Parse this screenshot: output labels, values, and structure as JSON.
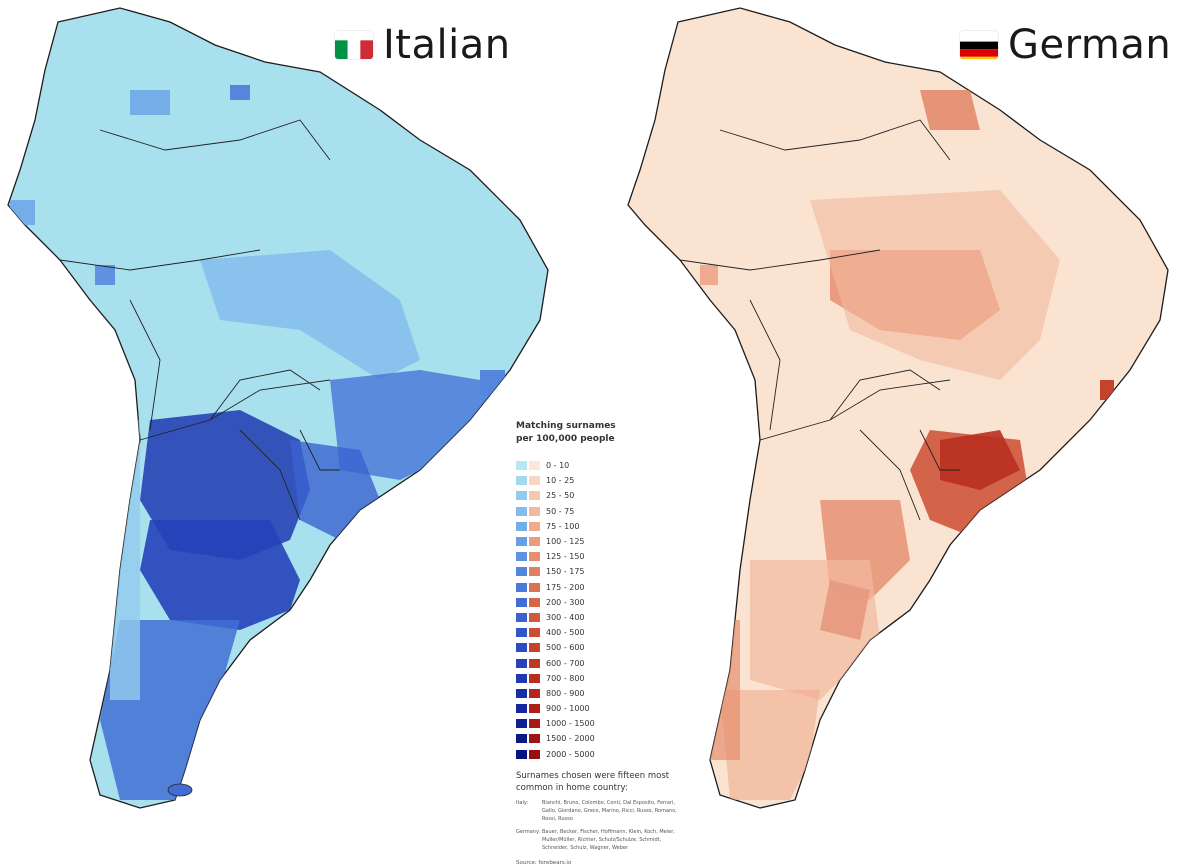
{
  "maps": {
    "italian": {
      "title": "Italian",
      "flag_icon": "italy-flag-icon",
      "flag_colors": [
        "#009246",
        "#ffffff",
        "#ce2b37"
      ],
      "base_color": "#a9e0ee",
      "scale": [
        "#b5e9f1",
        "#a3d9ef",
        "#92cbef",
        "#84bcec",
        "#73aee9",
        "#67a0e6",
        "#5f93e2",
        "#5486dd",
        "#4b7ad8",
        "#426ed4",
        "#3a63cf",
        "#3258c8",
        "#2b4dc1",
        "#2443b9",
        "#1e39b0",
        "#1830a6",
        "#13289c",
        "#0f2091",
        "#0b1987"
      ]
    },
    "german": {
      "title": "German",
      "flag_icon": "germany-flag-icon",
      "flag_colors": [
        "#000000",
        "#dd0000",
        "#ffce00"
      ],
      "base_color": "#fbe3d2",
      "scale": [
        "#fce7d8",
        "#f9d6c2",
        "#f6c8b0",
        "#f2b99e",
        "#eeab8d",
        "#ea9c7d",
        "#e68e6e",
        "#e18060",
        "#dc7253",
        "#d76547",
        "#d1593c",
        "#cb4d33",
        "#c5422b",
        "#bf3825",
        "#b82f20",
        "#b2271c",
        "#ab2018",
        "#a51a15",
        "#9e1512"
      ]
    }
  },
  "legend": {
    "title_line1": "Matching surnames",
    "title_line2": "per 100,000 people",
    "ranges": [
      "0 - 10",
      "10 - 25",
      "25 - 50",
      "50 - 75",
      "75 - 100",
      "100 - 125",
      "125 - 150",
      "150 - 175",
      "175 - 200",
      "200 - 300",
      "300 - 400",
      "400 - 500",
      "500 - 600",
      "600 - 700",
      "700 - 800",
      "800 - 900",
      "900 - 1000",
      "1000 - 1500",
      "1500 - 2000",
      "2000 - 5000"
    ],
    "italian_colors": [
      "#b5e9f1",
      "#a3d9ef",
      "#92cbef",
      "#84bcec",
      "#73aee9",
      "#67a0e6",
      "#5f93e2",
      "#5486dd",
      "#4b7ad8",
      "#426ed4",
      "#3a63cf",
      "#3258c8",
      "#2b4dc1",
      "#2443b9",
      "#1e39b0",
      "#1830a6",
      "#13289c",
      "#0f2091",
      "#0b1987",
      "#081380"
    ],
    "german_colors": [
      "#fce7d8",
      "#f9d6c2",
      "#f6c8b0",
      "#f2b99e",
      "#eeab8d",
      "#ea9c7d",
      "#e68e6e",
      "#e18060",
      "#dc7253",
      "#d76547",
      "#d1593c",
      "#cb4d33",
      "#c5422b",
      "#bf3825",
      "#b82f20",
      "#b2271c",
      "#ab2018",
      "#a51a15",
      "#9e1512",
      "#97100f"
    ],
    "note": "Surnames chosen were fifteen most common in home country:",
    "italy_label": "Italy:",
    "italy_names": "Bianchi, Bruno, Colombo, Conti, Dal Esposito, Ferrari, Gallo, Giordano, Greco, Marino, Ricci, Russo, Romano, Rossi, Russo",
    "germany_label": "Germany:",
    "germany_names": "Bauer, Becker, Fischer, Hoffmann, Klein, Koch, Meier, Muller/Müller, Richter, Schulz/Schulze, Schmidt, Schneider, Schulz, Wagner, Weber",
    "source": "Source: forebears.io"
  }
}
